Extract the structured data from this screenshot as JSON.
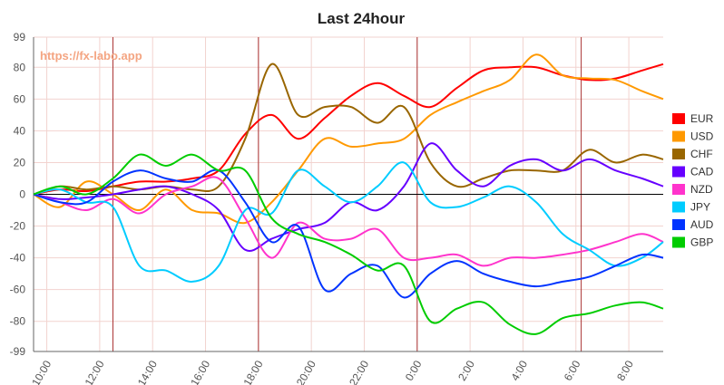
{
  "chart_data": {
    "type": "line",
    "title": "Last 24hour",
    "watermark": "https://fx-labo.app",
    "xlabel": "",
    "ylabel": "",
    "ylim": [
      -99,
      99
    ],
    "y_ticks": [
      99,
      80,
      60,
      40,
      20,
      0,
      -20,
      -40,
      -60,
      -80,
      -99
    ],
    "x_range_hours": [
      9.5,
      33.3
    ],
    "x_ticks": [
      {
        "label": "10:00",
        "hour": 10
      },
      {
        "label": "12:00",
        "hour": 12
      },
      {
        "label": "14:00",
        "hour": 14
      },
      {
        "label": "16:00",
        "hour": 16
      },
      {
        "label": "18:00",
        "hour": 18
      },
      {
        "label": "20:00",
        "hour": 20
      },
      {
        "label": "22:00",
        "hour": 22
      },
      {
        "label": "0:00",
        "hour": 24
      },
      {
        "label": "2:00",
        "hour": 26
      },
      {
        "label": "4:00",
        "hour": 28
      },
      {
        "label": "6:00",
        "hour": 30
      },
      {
        "label": "8:00",
        "hour": 32
      }
    ],
    "session_lines_hours": [
      12.5,
      18,
      24,
      30.2
    ],
    "grid": true,
    "legend_position": "right",
    "x": [
      9.5,
      10.5,
      11.5,
      12.5,
      13.5,
      14.5,
      15.5,
      16.5,
      17.5,
      18.5,
      19.5,
      20.5,
      21.5,
      22.5,
      23.5,
      24.5,
      25.5,
      26.5,
      27.5,
      28.5,
      29.5,
      30.5,
      31.5,
      32.5,
      33.3
    ],
    "series": [
      {
        "name": "EUR",
        "color": "#ff0000",
        "values": [
          0,
          3,
          2,
          5,
          8,
          8,
          10,
          15,
          38,
          50,
          35,
          48,
          62,
          70,
          62,
          55,
          67,
          78,
          80,
          80,
          75,
          72,
          73,
          78,
          82
        ]
      },
      {
        "name": "USD",
        "color": "#ff9900",
        "values": [
          0,
          -8,
          8,
          0,
          -10,
          3,
          -10,
          -12,
          -18,
          -5,
          15,
          35,
          30,
          32,
          35,
          50,
          58,
          65,
          72,
          88,
          75,
          73,
          72,
          65,
          60
        ]
      },
      {
        "name": "CHF",
        "color": "#996600",
        "values": [
          0,
          5,
          3,
          5,
          3,
          5,
          3,
          5,
          35,
          82,
          50,
          55,
          55,
          45,
          55,
          20,
          5,
          10,
          15,
          15,
          15,
          28,
          20,
          25,
          22
        ]
      },
      {
        "name": "CAD",
        "color": "#6600ff",
        "values": [
          0,
          -3,
          -2,
          0,
          3,
          5,
          0,
          -10,
          -35,
          -28,
          -22,
          -18,
          -5,
          -10,
          5,
          32,
          15,
          5,
          18,
          22,
          15,
          22,
          15,
          10,
          5
        ]
      },
      {
        "name": "NZD",
        "color": "#ff33cc",
        "values": [
          0,
          -5,
          -10,
          -3,
          -12,
          0,
          5,
          10,
          -15,
          -40,
          -18,
          -28,
          -28,
          -22,
          -40,
          -40,
          -38,
          -45,
          -40,
          -40,
          -38,
          -35,
          -30,
          -25,
          -30
        ]
      },
      {
        "name": "JPY",
        "color": "#00ccff",
        "values": [
          0,
          3,
          -5,
          -8,
          -45,
          -48,
          -55,
          -45,
          -10,
          -12,
          15,
          5,
          -5,
          5,
          20,
          -5,
          -8,
          -2,
          5,
          -5,
          -25,
          -35,
          -45,
          -40,
          -30
        ]
      },
      {
        "name": "AUD",
        "color": "#0033ff",
        "values": [
          0,
          -5,
          -5,
          8,
          15,
          10,
          8,
          15,
          -5,
          -30,
          -20,
          -60,
          -50,
          -45,
          -65,
          -50,
          -42,
          -50,
          -55,
          -58,
          -55,
          -52,
          -45,
          -38,
          -40
        ]
      },
      {
        "name": "GBP",
        "color": "#00cc00",
        "values": [
          0,
          5,
          0,
          10,
          25,
          18,
          25,
          15,
          15,
          -15,
          -25,
          -30,
          -38,
          -48,
          -45,
          -80,
          -72,
          -68,
          -82,
          -88,
          -78,
          -75,
          -70,
          -68,
          -72
        ]
      }
    ]
  }
}
